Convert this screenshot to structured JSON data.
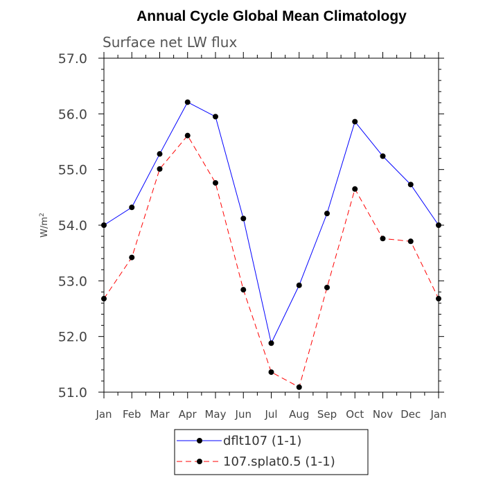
{
  "chart_data": {
    "type": "line",
    "title": "Annual Cycle Global Mean Climatology",
    "subtitle": "Surface net LW flux",
    "ylabel": "W/m",
    "ylabel_superscript": "2",
    "categories": [
      "Jan",
      "Feb",
      "Mar",
      "Apr",
      "May",
      "Jun",
      "Jul",
      "Aug",
      "Sep",
      "Oct",
      "Nov",
      "Dec",
      "Jan"
    ],
    "ylim": [
      51.0,
      57.0
    ],
    "yticks": [
      "51.0",
      "52.0",
      "53.0",
      "54.0",
      "55.0",
      "56.0",
      "57.0"
    ],
    "grid": false,
    "legend_position": "bottom-center",
    "series": [
      {
        "name": "dflt107 (1-1)",
        "color": "#0000ff",
        "line_style": "solid",
        "marker": "filled-circle",
        "values": [
          54.0,
          54.32,
          55.28,
          56.21,
          55.95,
          54.12,
          51.88,
          52.92,
          54.21,
          55.86,
          55.24,
          54.73,
          54.0
        ]
      },
      {
        "name": "107.splat0.5 (1-1)",
        "color": "#ff0000",
        "line_style": "dashed",
        "marker": "filled-circle",
        "values": [
          52.68,
          53.42,
          55.01,
          55.61,
          54.76,
          52.84,
          51.36,
          51.09,
          52.88,
          54.65,
          53.76,
          53.71,
          52.68
        ]
      }
    ]
  }
}
